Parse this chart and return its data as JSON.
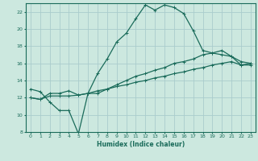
{
  "xlabel": "Humidex (Indice chaleur)",
  "bg_color": "#cce8df",
  "grid_color": "#aacccc",
  "line_color": "#1a6b5a",
  "xlim": [
    -0.5,
    23.5
  ],
  "ylim": [
    8,
    23
  ],
  "yticks": [
    8,
    10,
    12,
    14,
    16,
    18,
    20,
    22
  ],
  "xticks": [
    0,
    1,
    2,
    3,
    4,
    5,
    6,
    7,
    8,
    9,
    10,
    11,
    12,
    13,
    14,
    15,
    16,
    17,
    18,
    19,
    20,
    21,
    22,
    23
  ],
  "line1_x": [
    0,
    1,
    2,
    3,
    4,
    5,
    6,
    7,
    8,
    9,
    10,
    11,
    12,
    13,
    14,
    15,
    16,
    17,
    18,
    19,
    20,
    21,
    22,
    23
  ],
  "line1_y": [
    13.0,
    12.7,
    11.5,
    10.5,
    10.5,
    7.8,
    12.5,
    14.8,
    16.5,
    18.5,
    19.5,
    21.2,
    22.8,
    22.2,
    22.8,
    22.5,
    21.8,
    19.8,
    17.5,
    17.2,
    17.0,
    16.8,
    16.2,
    16.0
  ],
  "line2_x": [
    0,
    1,
    2,
    3,
    4,
    5,
    6,
    7,
    8,
    9,
    10,
    11,
    12,
    13,
    14,
    15,
    16,
    17,
    18,
    19,
    20,
    21,
    22,
    23
  ],
  "line2_y": [
    12.0,
    11.8,
    12.5,
    12.5,
    12.8,
    12.3,
    12.5,
    12.5,
    13.0,
    13.5,
    14.0,
    14.5,
    14.8,
    15.2,
    15.5,
    16.0,
    16.2,
    16.5,
    17.0,
    17.2,
    17.5,
    16.8,
    15.8,
    16.0
  ],
  "line3_x": [
    0,
    1,
    2,
    3,
    4,
    5,
    6,
    7,
    8,
    9,
    10,
    11,
    12,
    13,
    14,
    15,
    16,
    17,
    18,
    19,
    20,
    21,
    22,
    23
  ],
  "line3_y": [
    12.0,
    11.8,
    12.2,
    12.2,
    12.2,
    12.3,
    12.5,
    12.8,
    13.0,
    13.3,
    13.5,
    13.8,
    14.0,
    14.3,
    14.5,
    14.8,
    15.0,
    15.3,
    15.5,
    15.8,
    16.0,
    16.2,
    15.8,
    15.8
  ]
}
